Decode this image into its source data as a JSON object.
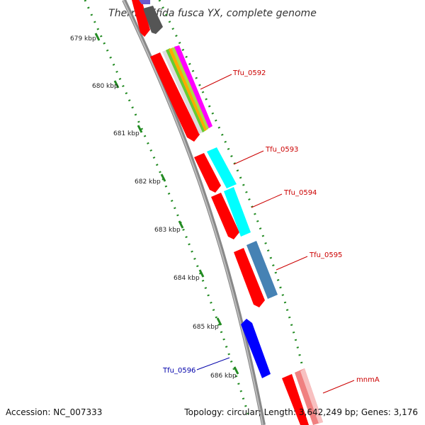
{
  "title": "Thermobifida fusca YX, complete genome",
  "footer": {
    "accession": "Accession: NC_007333",
    "summary": "Topology: circular; Length: 3,642,249 bp; Genes: 3,176"
  },
  "ticks": [
    "679 kbp",
    "680 kbp",
    "681 kbp",
    "682 kbp",
    "683 kbp",
    "684 kbp",
    "685 kbp",
    "686 kbp"
  ],
  "gene_labels": [
    {
      "text": "Tfu_0592",
      "color": "#cc0000"
    },
    {
      "text": "Tfu_0593",
      "color": "#cc0000"
    },
    {
      "text": "Tfu_0594",
      "color": "#cc0000"
    },
    {
      "text": "Tfu_0595",
      "color": "#cc0000"
    },
    {
      "text": "Tfu_0596",
      "color": "#0000aa"
    },
    {
      "text": "mnmA",
      "color": "#cc0000"
    }
  ],
  "colors": {
    "backbone": "#888888",
    "forward_cds": "#ff0000",
    "reverse_cds": "#0000ff",
    "tick_dots": "#228b22",
    "cyan_feature": "#00ffff",
    "steelblue_feature": "#4682b4",
    "pink_feature": "#f08080",
    "gray_feature": "#555555",
    "magenta_stripe": "#ff00ff",
    "green_stripe": "#66cc33",
    "orange_stripe": "#ffaa00"
  }
}
